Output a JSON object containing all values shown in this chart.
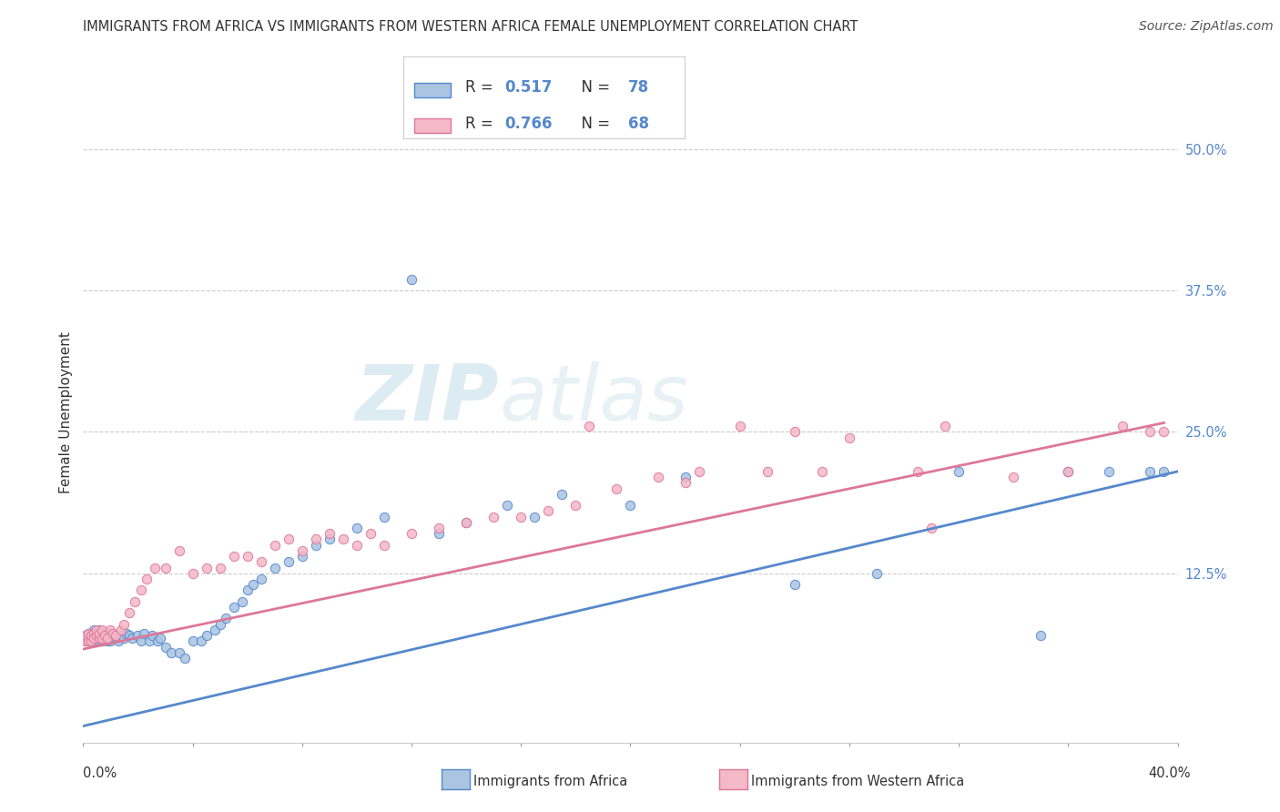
{
  "title": "IMMIGRANTS FROM AFRICA VS IMMIGRANTS FROM WESTERN AFRICA FEMALE UNEMPLOYMENT CORRELATION CHART",
  "source": "Source: ZipAtlas.com",
  "ylabel": "Female Unemployment",
  "right_yticks": [
    "50.0%",
    "37.5%",
    "25.0%",
    "12.5%"
  ],
  "right_ytick_vals": [
    0.5,
    0.375,
    0.25,
    0.125
  ],
  "series1_color": "#aac4e2",
  "series1_edge": "#5588cc",
  "series2_color": "#f5b8c8",
  "series2_edge": "#dd7799",
  "line1_color": "#5588cc",
  "line2_color": "#dd7799",
  "watermark_zip": "ZIP",
  "watermark_atlas": "atlas",
  "xmin": 0.0,
  "xmax": 0.4,
  "ymin": -0.025,
  "ymax": 0.56,
  "series1_x": [
    0.001,
    0.001,
    0.002,
    0.002,
    0.002,
    0.003,
    0.003,
    0.003,
    0.004,
    0.004,
    0.004,
    0.005,
    0.005,
    0.005,
    0.006,
    0.006,
    0.006,
    0.007,
    0.007,
    0.008,
    0.008,
    0.009,
    0.009,
    0.01,
    0.01,
    0.011,
    0.012,
    0.013,
    0.014,
    0.015,
    0.016,
    0.017,
    0.018,
    0.02,
    0.021,
    0.022,
    0.024,
    0.025,
    0.027,
    0.028,
    0.03,
    0.032,
    0.035,
    0.037,
    0.04,
    0.043,
    0.045,
    0.048,
    0.05,
    0.052,
    0.055,
    0.058,
    0.06,
    0.062,
    0.065,
    0.07,
    0.075,
    0.08,
    0.085,
    0.09,
    0.1,
    0.11,
    0.12,
    0.13,
    0.14,
    0.155,
    0.165,
    0.175,
    0.2,
    0.22,
    0.26,
    0.29,
    0.32,
    0.35,
    0.36,
    0.375,
    0.39,
    0.395
  ],
  "series1_y": [
    0.065,
    0.07,
    0.065,
    0.068,
    0.072,
    0.065,
    0.07,
    0.072,
    0.065,
    0.068,
    0.075,
    0.065,
    0.068,
    0.072,
    0.065,
    0.07,
    0.075,
    0.065,
    0.07,
    0.068,
    0.072,
    0.065,
    0.07,
    0.065,
    0.072,
    0.07,
    0.068,
    0.065,
    0.07,
    0.068,
    0.072,
    0.07,
    0.068,
    0.07,
    0.065,
    0.072,
    0.065,
    0.07,
    0.065,
    0.068,
    0.06,
    0.055,
    0.055,
    0.05,
    0.065,
    0.065,
    0.07,
    0.075,
    0.08,
    0.085,
    0.095,
    0.1,
    0.11,
    0.115,
    0.12,
    0.13,
    0.135,
    0.14,
    0.15,
    0.155,
    0.165,
    0.175,
    0.385,
    0.16,
    0.17,
    0.185,
    0.175,
    0.195,
    0.185,
    0.21,
    0.115,
    0.125,
    0.215,
    0.07,
    0.215,
    0.215,
    0.215,
    0.215
  ],
  "series2_x": [
    0.001,
    0.001,
    0.002,
    0.002,
    0.003,
    0.003,
    0.004,
    0.004,
    0.005,
    0.005,
    0.006,
    0.006,
    0.007,
    0.007,
    0.008,
    0.009,
    0.01,
    0.011,
    0.012,
    0.014,
    0.015,
    0.017,
    0.019,
    0.021,
    0.023,
    0.026,
    0.03,
    0.035,
    0.04,
    0.045,
    0.05,
    0.055,
    0.06,
    0.065,
    0.07,
    0.075,
    0.08,
    0.085,
    0.09,
    0.095,
    0.1,
    0.105,
    0.11,
    0.12,
    0.13,
    0.14,
    0.15,
    0.16,
    0.17,
    0.18,
    0.195,
    0.21,
    0.225,
    0.24,
    0.26,
    0.28,
    0.305,
    0.315,
    0.34,
    0.36,
    0.38,
    0.39,
    0.395,
    0.31,
    0.185,
    0.22,
    0.25,
    0.27
  ],
  "series2_y": [
    0.065,
    0.07,
    0.065,
    0.072,
    0.065,
    0.07,
    0.072,
    0.068,
    0.07,
    0.075,
    0.068,
    0.072,
    0.068,
    0.075,
    0.07,
    0.068,
    0.075,
    0.072,
    0.07,
    0.075,
    0.08,
    0.09,
    0.1,
    0.11,
    0.12,
    0.13,
    0.13,
    0.145,
    0.125,
    0.13,
    0.13,
    0.14,
    0.14,
    0.135,
    0.15,
    0.155,
    0.145,
    0.155,
    0.16,
    0.155,
    0.15,
    0.16,
    0.15,
    0.16,
    0.165,
    0.17,
    0.175,
    0.175,
    0.18,
    0.185,
    0.2,
    0.21,
    0.215,
    0.255,
    0.25,
    0.245,
    0.215,
    0.255,
    0.21,
    0.215,
    0.255,
    0.25,
    0.25,
    0.165,
    0.255,
    0.205,
    0.215,
    0.215
  ],
  "line1_x": [
    0.0,
    0.4
  ],
  "line1_y": [
    -0.01,
    0.215
  ],
  "line2_x": [
    0.0,
    0.395
  ],
  "line2_y": [
    0.058,
    0.258
  ],
  "grid_color": "#cccccc",
  "bg_color": "#ffffff",
  "legend_label1": "Immigrants from Africa",
  "legend_label2": "Immigrants from Western Africa",
  "legend1_r": "R = 0.517",
  "legend1_n": "N = 78",
  "legend2_r": "R = 0.766",
  "legend2_n": "N = 68"
}
